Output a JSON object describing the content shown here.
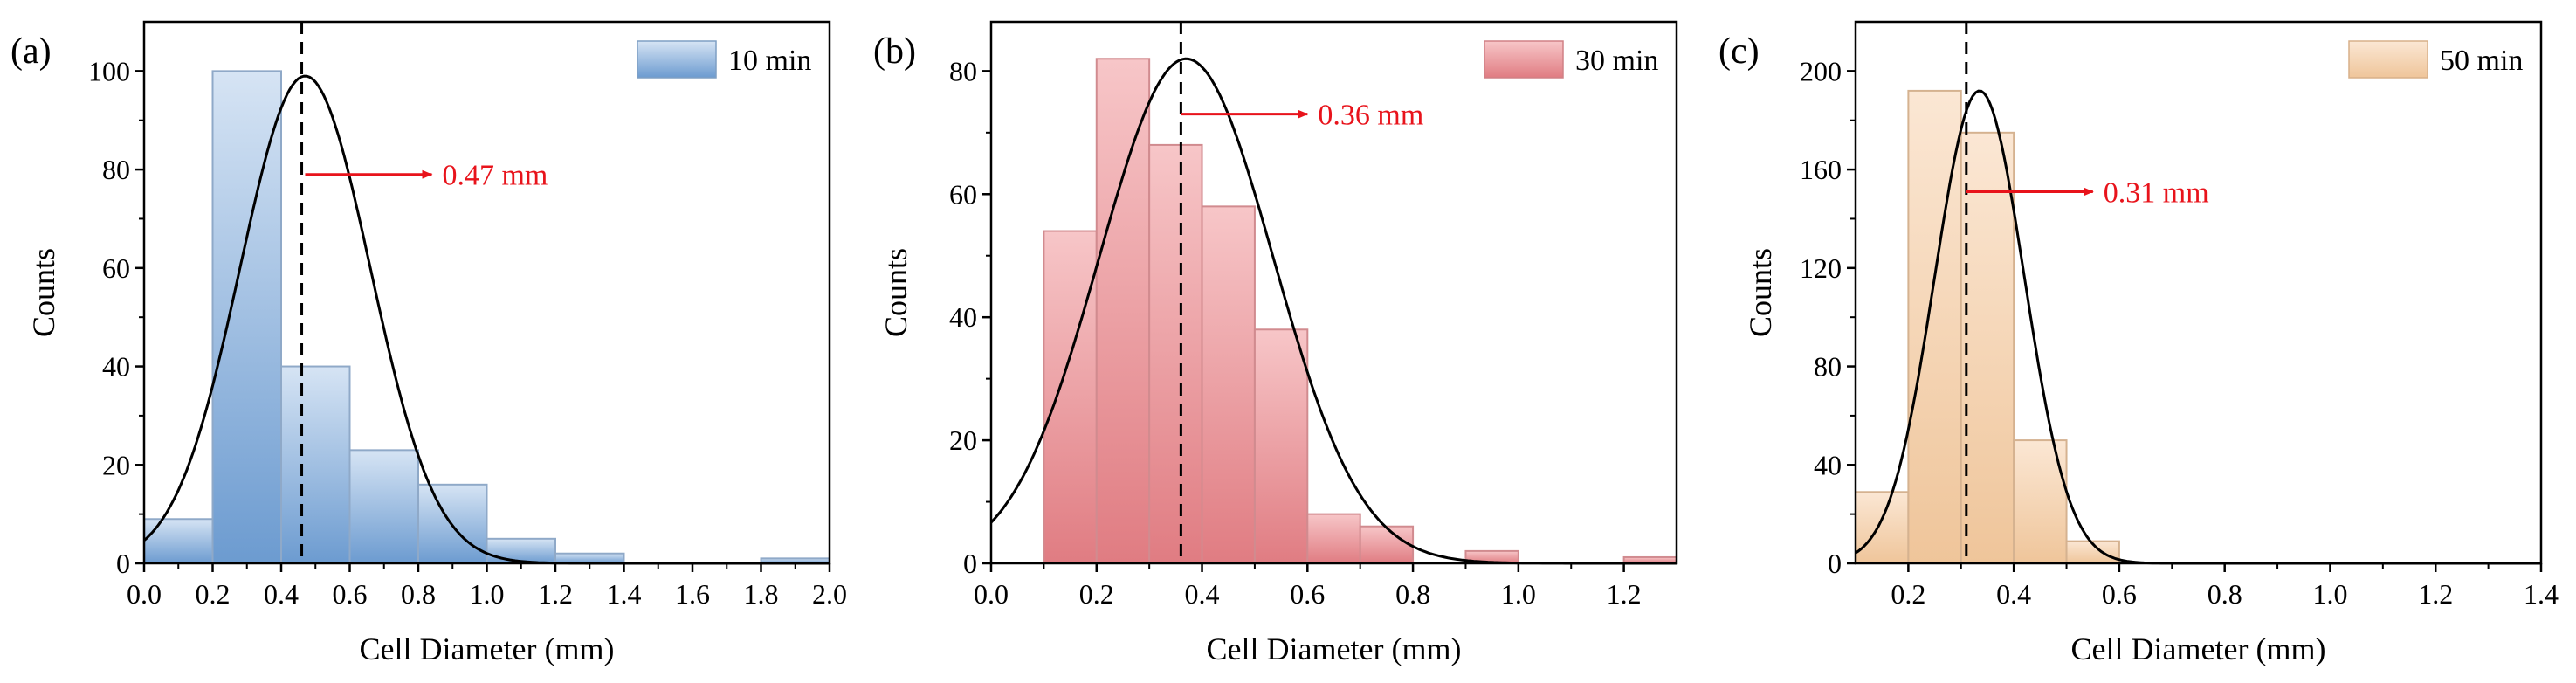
{
  "chart_data": [
    {
      "type": "bar",
      "panel_label": "(a)",
      "legend": "10 min",
      "xlabel": "Cell Diameter (mm)",
      "ylabel": "Counts",
      "xlim": [
        0,
        2.0
      ],
      "ylim": [
        0,
        110
      ],
      "xticks": [
        "0.0",
        "0.2",
        "0.4",
        "0.6",
        "0.8",
        "1.0",
        "1.2",
        "1.4",
        "1.6",
        "1.8",
        "2.0"
      ],
      "yticks": [
        "0",
        "20",
        "40",
        "60",
        "80",
        "100"
      ],
      "bins": [
        {
          "from": 0.0,
          "to": 0.2,
          "count": 9
        },
        {
          "from": 0.2,
          "to": 0.4,
          "count": 100
        },
        {
          "from": 0.4,
          "to": 0.6,
          "count": 40
        },
        {
          "from": 0.6,
          "to": 0.8,
          "count": 23
        },
        {
          "from": 0.8,
          "to": 1.0,
          "count": 16
        },
        {
          "from": 1.0,
          "to": 1.2,
          "count": 5
        },
        {
          "from": 1.2,
          "to": 1.4,
          "count": 2
        },
        {
          "from": 1.8,
          "to": 2.0,
          "count": 1
        }
      ],
      "fit": {
        "mean": 0.47,
        "sd": 0.19,
        "peak": 99
      },
      "mean_line": 0.46,
      "annotation": "0.47 mm",
      "annotation_at": {
        "x": 0.47,
        "y": 79
      },
      "color": "#5b8fc9"
    },
    {
      "type": "bar",
      "panel_label": "(b)",
      "legend": "30 min",
      "xlabel": "Cell Diameter (mm)",
      "ylabel": "Counts",
      "xlim": [
        0,
        1.3
      ],
      "ylim": [
        0,
        88
      ],
      "xticks": [
        "0.0",
        "0.2",
        "0.4",
        "0.6",
        "0.8",
        "1.0",
        "1.2"
      ],
      "yticks": [
        "0",
        "20",
        "40",
        "60",
        "80"
      ],
      "bins": [
        {
          "from": 0.1,
          "to": 0.2,
          "count": 54
        },
        {
          "from": 0.2,
          "to": 0.3,
          "count": 82
        },
        {
          "from": 0.3,
          "to": 0.4,
          "count": 68
        },
        {
          "from": 0.4,
          "to": 0.5,
          "count": 58
        },
        {
          "from": 0.5,
          "to": 0.6,
          "count": 38
        },
        {
          "from": 0.6,
          "to": 0.7,
          "count": 8
        },
        {
          "from": 0.7,
          "to": 0.8,
          "count": 6
        },
        {
          "from": 0.8,
          "to": 0.9,
          "count": 0
        },
        {
          "from": 0.9,
          "to": 1.0,
          "count": 2
        },
        {
          "from": 1.0,
          "to": 1.1,
          "count": 0
        },
        {
          "from": 1.1,
          "to": 1.2,
          "count": 0
        },
        {
          "from": 1.2,
          "to": 1.3,
          "count": 1
        }
      ],
      "fit": {
        "mean": 0.37,
        "sd": 0.165,
        "peak": 82
      },
      "mean_line": 0.36,
      "annotation": "0.36 mm",
      "annotation_at": {
        "x": 0.36,
        "y": 73
      },
      "color": "#e57f84"
    },
    {
      "type": "bar",
      "panel_label": "(c)",
      "legend": "50 min",
      "xlabel": "Cell Diameter (mm)",
      "ylabel": "Counts",
      "xlim": [
        0.1,
        1.4
      ],
      "ylim": [
        0,
        220
      ],
      "xticks": [
        "0.2",
        "0.4",
        "0.6",
        "0.8",
        "1.0",
        "1.2",
        "1.4"
      ],
      "yticks": [
        "0",
        "40",
        "80",
        "120",
        "160",
        "200"
      ],
      "bins": [
        {
          "from": 0.1,
          "to": 0.2,
          "count": 29
        },
        {
          "from": 0.2,
          "to": 0.3,
          "count": 192
        },
        {
          "from": 0.3,
          "to": 0.4,
          "count": 175
        },
        {
          "from": 0.4,
          "to": 0.5,
          "count": 50
        },
        {
          "from": 0.5,
          "to": 0.6,
          "count": 9
        }
      ],
      "fit": {
        "mean": 0.335,
        "sd": 0.085,
        "peak": 192
      },
      "mean_line": 0.31,
      "annotation": "0.31 mm",
      "annotation_at": {
        "x": 0.31,
        "y": 151
      },
      "color": "#f0c9a0"
    }
  ]
}
